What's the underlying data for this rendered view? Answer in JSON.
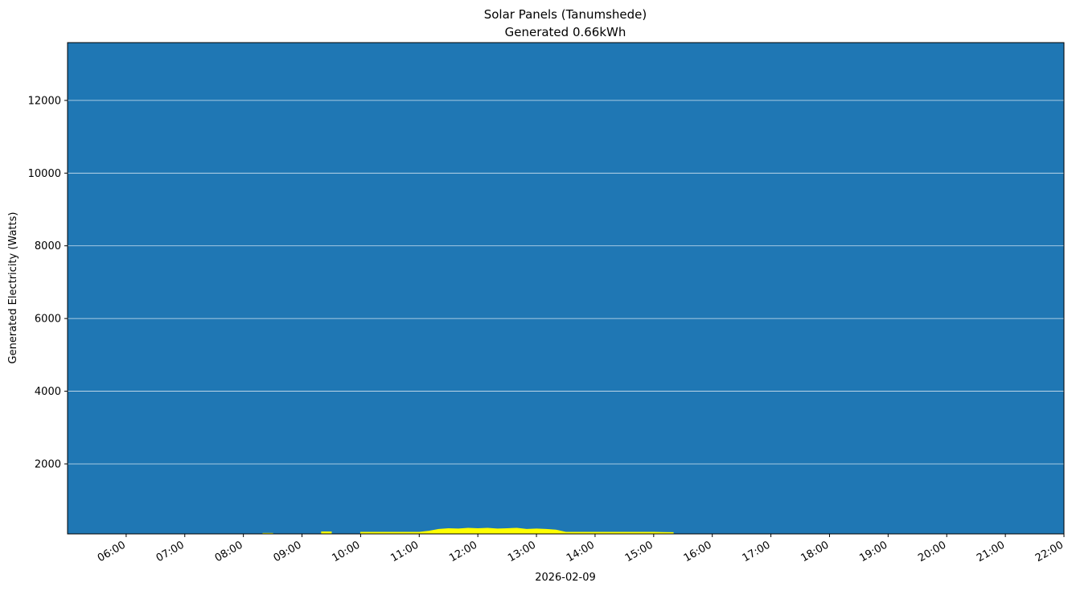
{
  "chart_data": {
    "type": "area",
    "title": "Solar Panels (Tanumshede)",
    "subtitle": "Generated 0.66kWh",
    "x_label": "2026-02-09",
    "y_label": "Generated Electricity (Watts)",
    "background": "#1f77b4",
    "grid": true,
    "x": [
      "08:20",
      "08:30",
      "08:40",
      "08:50",
      "09:00",
      "09:10",
      "09:20",
      "09:30",
      "09:40",
      "09:50",
      "10:00",
      "10:10",
      "10:20",
      "10:30",
      "10:40",
      "10:50",
      "11:00",
      "11:10",
      "11:20",
      "11:30",
      "11:40",
      "11:50",
      "12:00",
      "12:10",
      "12:20",
      "12:30",
      "12:40",
      "12:50",
      "13:00",
      "13:10",
      "13:20",
      "13:30",
      "13:40",
      "13:50",
      "14:00",
      "14:10",
      "14:20",
      "14:30",
      "14:40",
      "14:50",
      "15:00",
      "15:10",
      "15:20"
    ],
    "series": [
      {
        "name": "Generated",
        "color": "#ffff00",
        "values": [
          90,
          90,
          null,
          null,
          null,
          null,
          130,
          130,
          null,
          null,
          120,
          120,
          120,
          120,
          120,
          120,
          120,
          150,
          200,
          220,
          210,
          230,
          220,
          230,
          210,
          220,
          230,
          200,
          210,
          200,
          180,
          120,
          120,
          120,
          120,
          120,
          120,
          120,
          120,
          120,
          120,
          115,
          110
        ]
      }
    ],
    "xlim": [
      "05:00",
      "22:00"
    ],
    "xticks": [
      "06:00",
      "07:00",
      "08:00",
      "09:00",
      "10:00",
      "11:00",
      "12:00",
      "13:00",
      "14:00",
      "15:00",
      "16:00",
      "17:00",
      "18:00",
      "19:00",
      "20:00",
      "21:00",
      "22:00"
    ],
    "ylim": [
      75,
      13590
    ],
    "yticks": [
      2000,
      4000,
      6000,
      8000,
      10000,
      12000
    ]
  }
}
